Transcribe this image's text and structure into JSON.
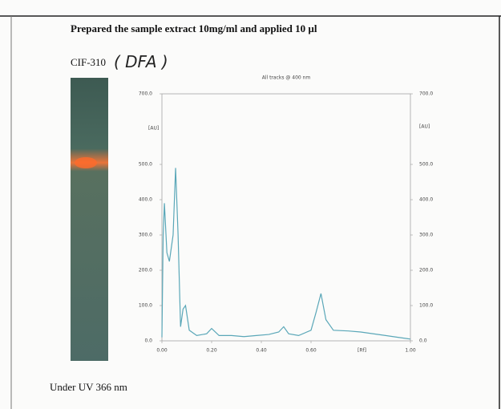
{
  "document": {
    "heading": "Prepared the sample extract 10mg/ml and applied 10 µl",
    "sample": "CIF-310",
    "handwritten_note": "( DFA )",
    "caption": "Under UV 366 nm"
  },
  "chart_data": {
    "type": "line",
    "title": "All tracks @ 400 nm",
    "y_label": "[AU]",
    "y2_label": "[AU]",
    "x_label": "[Rf]",
    "x": [
      0,
      0.005,
      0.01,
      0.02,
      0.03,
      0.045,
      0.055,
      0.065,
      0.075,
      0.085,
      0.095,
      0.11,
      0.14,
      0.18,
      0.2,
      0.23,
      0.28,
      0.33,
      0.38,
      0.43,
      0.47,
      0.49,
      0.51,
      0.55,
      0.6,
      0.62,
      0.64,
      0.66,
      0.69,
      0.75,
      0.8,
      0.9,
      0.95,
      1.0
    ],
    "values": [
      10,
      300,
      390,
      250,
      225,
      300,
      490,
      300,
      40,
      90,
      100,
      30,
      15,
      20,
      35,
      15,
      15,
      12,
      15,
      18,
      25,
      40,
      20,
      15,
      30,
      80,
      134,
      60,
      30,
      28,
      25,
      15,
      10,
      5
    ],
    "color": "#5aa7b8",
    "xlim": [
      0,
      1
    ],
    "ylim": [
      0,
      700
    ],
    "y2lim": [
      0,
      700
    ],
    "xticks": [
      {
        "value": 0,
        "label": "0.00"
      },
      {
        "value": 0.2,
        "label": "0.20"
      },
      {
        "value": 0.4,
        "label": "0.40"
      },
      {
        "value": 0.6,
        "label": "0.60"
      },
      {
        "value": 1,
        "label": "1.00"
      }
    ],
    "yticks": [
      {
        "value": 0,
        "label": "0.0"
      },
      {
        "value": 100,
        "label": "100.0"
      },
      {
        "value": 200,
        "label": "200.0"
      },
      {
        "value": 300,
        "label": "300.0"
      },
      {
        "value": 400,
        "label": "400.0"
      },
      {
        "value": 500,
        "label": "500.0"
      },
      {
        "value": 700,
        "label": "700.0"
      }
    ],
    "y2ticks": [
      {
        "value": 0,
        "label": "0.0"
      },
      {
        "value": 100,
        "label": "100.0"
      },
      {
        "value": 200,
        "label": "200.0"
      },
      {
        "value": 300,
        "label": "300.0"
      },
      {
        "value": 400,
        "label": "400.0"
      },
      {
        "value": 500,
        "label": "500.0"
      },
      {
        "value": 700,
        "label": "700.0"
      }
    ],
    "grid": false
  }
}
